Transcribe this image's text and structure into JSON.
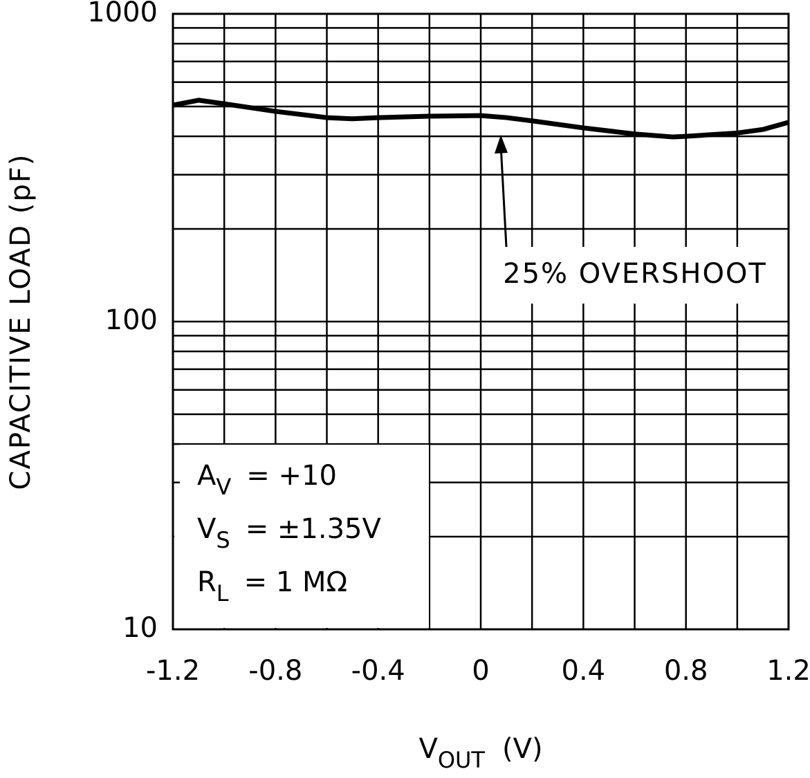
{
  "chart_data": {
    "type": "line",
    "y_label": "CAPACITIVE LOAD (pF)",
    "x_label": {
      "symbol": "V",
      "sub": "OUT",
      "unit": "(V)"
    },
    "x": [
      -1.2,
      -1.1,
      -1.0,
      -0.8,
      -0.6,
      -0.5,
      -0.4,
      -0.2,
      0,
      0.1,
      0.2,
      0.4,
      0.6,
      0.75,
      0.8,
      1.0,
      1.1,
      1.2
    ],
    "series": [
      {
        "name": "25% OVERSHOOT",
        "color": "#000000",
        "values": [
          505,
          524,
          510,
          482,
          460,
          456,
          460,
          465,
          467,
          460,
          449,
          426,
          407,
          398,
          400,
          410,
          421,
          444
        ]
      }
    ],
    "xlim": [
      -1.2,
      1.2
    ],
    "xticks": [
      -1.2,
      -0.8,
      -0.4,
      0,
      0.4,
      0.8,
      1.2
    ],
    "x_minor_ticks": [
      -1.0,
      -0.6,
      -0.2,
      0.2,
      0.6,
      1.0
    ],
    "ylim": [
      10,
      1000
    ],
    "yticks": [
      10,
      100,
      1000
    ],
    "y_minor_ticks": [
      20,
      30,
      40,
      50,
      60,
      70,
      80,
      90,
      200,
      300,
      400,
      500,
      600,
      700,
      800,
      900
    ],
    "log_y": true,
    "grid": true,
    "conditions": [
      {
        "symbol": "A",
        "sub": "V",
        "value": "=  +10"
      },
      {
        "symbol": "V",
        "sub": "S",
        "value": "=  ±1.35V"
      },
      {
        "symbol": "R",
        "sub": "L",
        "value": "=  1 MΩ"
      }
    ]
  }
}
